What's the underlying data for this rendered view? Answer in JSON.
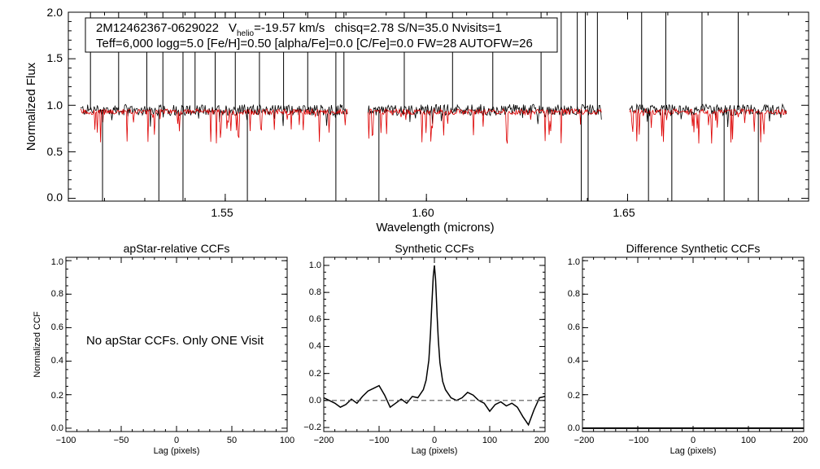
{
  "chart_data": [
    {
      "type": "line",
      "id": "spectrum",
      "xlabel": "Wavelength (microns)",
      "ylabel": "Normalized Flux",
      "xlim": [
        1.511,
        1.695
      ],
      "ylim": [
        -0.03,
        2.0
      ],
      "xticks": [
        "1.55",
        "1.60",
        "1.65"
      ],
      "yticks": [
        "0.0",
        "0.5",
        "1.0",
        "1.5",
        "2.0"
      ],
      "annotation": {
        "star_id": "2M12462367-0629022",
        "vhelio_label": "V",
        "vhelio_sub": "helio",
        "vhelio_value": "=-19.57 km/s",
        "stats": "chisq=2.78  S/N=35.0  Nvisits=1",
        "params": "Teff=6,000 logg=5.0 [Fe/H]=0.50 [alpha/Fe]=0.0 [C/Fe]=0.0 FW=28 AUTOFW=26"
      },
      "series": [
        {
          "name": "observed",
          "color": "#000000",
          "level": 0.95
        },
        {
          "name": "synthetic",
          "color": "#dd0000",
          "level": 0.93
        }
      ],
      "chips": [
        [
          1.514,
          1.5805
        ],
        [
          1.5855,
          1.6435
        ],
        [
          1.6505,
          1.6895
        ]
      ],
      "emission_spikes": [
        1.5165,
        1.5235,
        1.5305,
        1.5345,
        1.5395,
        1.5425,
        1.5475,
        1.5525,
        1.5585,
        1.5645,
        1.5705,
        1.5775,
        1.5795,
        1.5945,
        1.6065,
        1.6165,
        1.6285,
        1.6335,
        1.6375,
        1.6395,
        1.6425,
        1.6535,
        1.6595,
        1.6685,
        1.6775
      ],
      "absorption_lines": [
        1.5195,
        1.5335,
        1.5395,
        1.5555,
        1.5775,
        1.5882,
        1.6385,
        1.6402,
        1.6552,
        1.661,
        1.674,
        1.6825
      ]
    },
    {
      "type": "line",
      "id": "apstar_ccf",
      "title": "apStar-relative CCFs",
      "xlabel": "Lag (pixels)",
      "ylabel": "Normalized CCF",
      "xlim": [
        -100,
        100
      ],
      "ylim": [
        -0.02,
        1.02
      ],
      "xticks": [
        "−100",
        "−50",
        "0",
        "50",
        "100"
      ],
      "yticks": [
        "0.0",
        "0.2",
        "0.4",
        "0.6",
        "0.8",
        "1.0"
      ],
      "note": "No apStar CCFs.  Only ONE Visit",
      "series": []
    },
    {
      "type": "line",
      "id": "synthetic_ccf",
      "title": "Synthetic CCFs",
      "xlabel": "Lag (pixels)",
      "xlim": [
        -200,
        200
      ],
      "ylim": [
        -0.23,
        1.06
      ],
      "xticks": [
        "−200",
        "−100",
        "0",
        "100",
        "200"
      ],
      "yticks": [
        "−0.2",
        "0.0",
        "0.2",
        "0.4",
        "0.6",
        "0.8",
        "1.0"
      ],
      "series": [
        {
          "name": "ccf",
          "color": "#000000",
          "x": [
            -200,
            -190,
            -180,
            -170,
            -160,
            -150,
            -140,
            -130,
            -120,
            -110,
            -100,
            -90,
            -80,
            -70,
            -60,
            -50,
            -40,
            -30,
            -20,
            -15,
            -10,
            -7,
            -5,
            -3,
            -2,
            0,
            2,
            3,
            5,
            7,
            10,
            15,
            20,
            30,
            40,
            50,
            60,
            70,
            80,
            90,
            100,
            110,
            120,
            130,
            140,
            150,
            160,
            170,
            180,
            190,
            200
          ],
          "y": [
            0.02,
            0.0,
            -0.02,
            -0.05,
            -0.03,
            0.01,
            -0.02,
            0.03,
            0.07,
            0.09,
            0.11,
            0.04,
            -0.05,
            -0.02,
            0.01,
            -0.02,
            0.03,
            0.02,
            0.08,
            0.15,
            0.3,
            0.5,
            0.68,
            0.85,
            0.92,
            1.0,
            0.9,
            0.82,
            0.62,
            0.45,
            0.28,
            0.14,
            0.08,
            0.02,
            0.0,
            0.02,
            0.06,
            0.04,
            0.0,
            -0.02,
            -0.08,
            -0.03,
            -0.01,
            -0.04,
            -0.02,
            -0.05,
            -0.12,
            -0.18,
            -0.07,
            0.02,
            0.03
          ]
        },
        {
          "name": "zero",
          "color": "#555555",
          "dashed": true,
          "x": [
            -200,
            200
          ],
          "y": [
            0.0,
            0.0
          ]
        }
      ]
    },
    {
      "type": "line",
      "id": "diff_ccf",
      "title": "Difference Synthetic CCFs",
      "xlabel": "Lag (pixels)",
      "xlim": [
        -200,
        200
      ],
      "ylim": [
        -0.02,
        1.02
      ],
      "xticks": [
        "−200",
        "−100",
        "0",
        "100",
        "200"
      ],
      "yticks": [
        "0.0",
        "0.2",
        "0.4",
        "0.6",
        "0.8",
        "1.0"
      ],
      "series": [
        {
          "name": "diff",
          "color": "#000000",
          "x": [
            -200,
            200
          ],
          "y": [
            0.0,
            0.0
          ]
        }
      ]
    }
  ]
}
